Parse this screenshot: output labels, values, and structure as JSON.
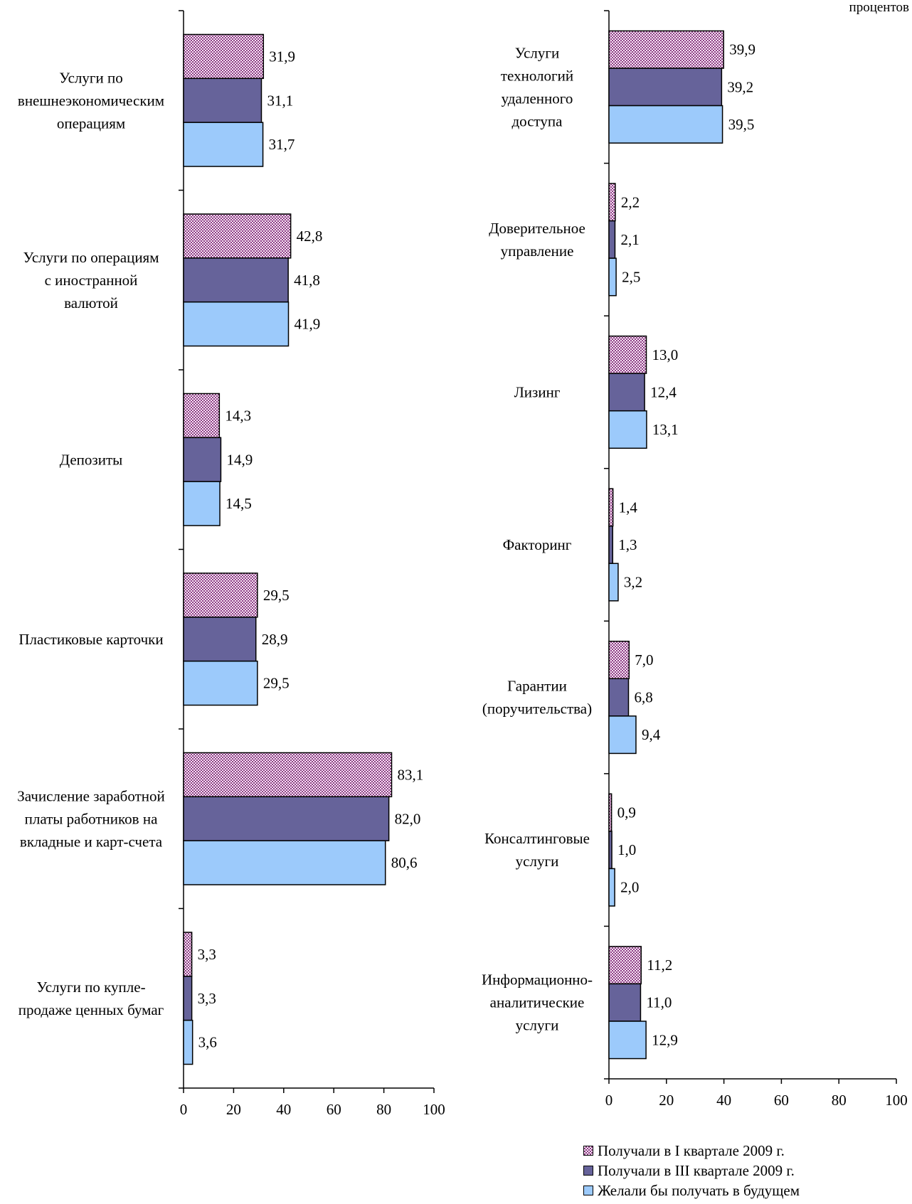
{
  "units_label": "процентов",
  "chart_data": [
    {
      "type": "bar",
      "orientation": "horizontal",
      "categories": [
        "Услуги по внешнеэкономическим операциям",
        "Услуги по операциям с иностранной валютой",
        "Депозиты",
        "Пластиковые карточки",
        "Зачисление заработной платы работников на вкладные и карт-счета",
        "Услуги по купле-продаже ценных бумаг"
      ],
      "category_lines": [
        [
          "Услуги по",
          "внешнеэкономическим",
          "операциям"
        ],
        [
          "Услуги по операциям",
          "с иностранной",
          "валютой"
        ],
        [
          "Депозиты"
        ],
        [
          "Пластиковые карточки"
        ],
        [
          "Зачисление заработной",
          "платы работников на",
          "вкладные и карт-счета"
        ],
        [
          "Услуги по купле-",
          "продаже ценных бумаг"
        ]
      ],
      "series": [
        {
          "name": "Получали в I квартале 2009 г.",
          "values": [
            31.9,
            42.8,
            14.3,
            29.5,
            83.1,
            3.3
          ]
        },
        {
          "name": "Получали в III квартале 2009 г.",
          "values": [
            31.1,
            41.8,
            14.9,
            28.9,
            82.0,
            3.3
          ]
        },
        {
          "name": "Желали бы получать в будущем",
          "values": [
            31.7,
            41.9,
            14.5,
            29.5,
            80.6,
            3.6
          ]
        }
      ],
      "value_labels": [
        [
          "31,9",
          "42,8",
          "14,3",
          "29,5",
          "83,1",
          "3,3"
        ],
        [
          "31,1",
          "41,8",
          "14,9",
          "28,9",
          "82,0",
          "3,3"
        ],
        [
          "31,7",
          "41,9",
          "14,5",
          "29,5",
          "80,6",
          "3,6"
        ]
      ],
      "xlim": [
        0,
        100
      ],
      "xticks": [
        "0",
        "20",
        "40",
        "60",
        "80",
        "100"
      ],
      "grid": false
    },
    {
      "type": "bar",
      "orientation": "horizontal",
      "categories": [
        "Услуги технологий удаленного доступа",
        "Доверительное управление",
        "Лизинг",
        "Факторинг",
        "Гарантии (поручительства)",
        "Консалтинговые услуги",
        "Информационно-аналитические услуги"
      ],
      "category_lines": [
        [
          "Услуги",
          "технологий",
          "удаленного",
          "доступа"
        ],
        [
          "Доверительное",
          "управление"
        ],
        [
          "Лизинг"
        ],
        [
          "Факторинг"
        ],
        [
          "Гарантии",
          "(поручительства)"
        ],
        [
          "Консалтинговые",
          "услуги"
        ],
        [
          "Информационно-",
          "аналитические",
          "услуги"
        ]
      ],
      "series": [
        {
          "name": "Получали в I квартале 2009 г.",
          "values": [
            39.9,
            2.2,
            13.0,
            1.4,
            7.0,
            0.9,
            11.2
          ]
        },
        {
          "name": "Получали в III квартале 2009 г.",
          "values": [
            39.2,
            2.1,
            12.4,
            1.3,
            6.8,
            1.0,
            11.0
          ]
        },
        {
          "name": "Желали бы получать в будущем",
          "values": [
            39.5,
            2.5,
            13.1,
            3.2,
            9.4,
            2.0,
            12.9
          ]
        }
      ],
      "value_labels": [
        [
          "39,9",
          "2,2",
          "13,0",
          "1,4",
          "7,0",
          "0,9",
          "11,2"
        ],
        [
          "39,2",
          "2,1",
          "12,4",
          "1,3",
          "6,8",
          "1,0",
          "11,0"
        ],
        [
          "39,5",
          "2,5",
          "13,1",
          "3,2",
          "9,4",
          "2,0",
          "12,9"
        ]
      ],
      "xlim": [
        0,
        100
      ],
      "xticks": [
        "0",
        "20",
        "40",
        "60",
        "80",
        "100"
      ],
      "grid": false
    }
  ],
  "legend": {
    "placement": "bottom-right",
    "items": [
      "Получали в I квартале 2009 г.",
      "Получали в III квартале 2009 г.",
      "Желали бы получать в будущем"
    ]
  },
  "colors": {
    "series1_dark": "#8e3d86",
    "series1_light": "#f6e7f4",
    "series2": "#66639a",
    "series3": "#9ccafb"
  }
}
